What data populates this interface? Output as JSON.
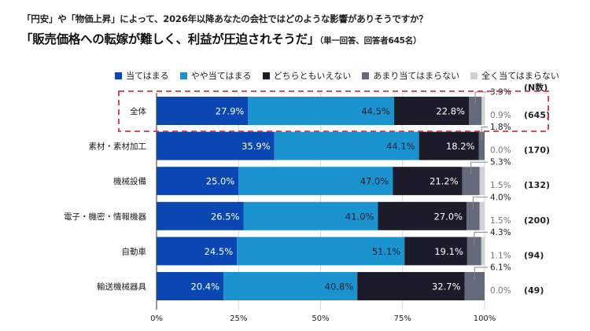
{
  "question": "「円安」や「物価上昇」によって、2026年以降あなたの会社ではどのような影響がありそうですか？",
  "title": "「販売価格への転嫁が難しく、利益が圧迫されそうだ」",
  "title_note": "（単一回答、回答者645名）",
  "n_header": "(N数)",
  "chart_data": {
    "type": "bar",
    "orientation": "horizontal-stacked-100",
    "title": "「販売価格への転嫁が難しく、利益が圧迫されそうだ」",
    "subtitle": "（単一回答、回答者645名）",
    "xlabel": "",
    "ylabel": "",
    "xlim": [
      0,
      100
    ],
    "x_ticks": [
      "0%",
      "25%",
      "50%",
      "75%",
      "100%"
    ],
    "grid": true,
    "legend_position": "top",
    "highlighted_category": "全体",
    "categories": [
      "全体",
      "素材・素材加工",
      "機械設備",
      "電子・機密・情報機器",
      "自動車",
      "輸送機械器具"
    ],
    "n": [
      "(645)",
      "(170)",
      "(132)",
      "(200)",
      "(94)",
      "(49)"
    ],
    "series": [
      {
        "name": "当てはまる",
        "color": "#0a47b3",
        "label_color": "#ffffff",
        "values": [
          27.9,
          35.9,
          25.0,
          26.5,
          24.5,
          20.4
        ]
      },
      {
        "name": "やや当てはまる",
        "color": "#1a93cf",
        "label_color": "#1b1f2e",
        "values": [
          44.5,
          44.1,
          47.0,
          41.0,
          51.1,
          40.8
        ]
      },
      {
        "name": "どちらともいえない",
        "color": "#1b1b29",
        "label_color": "#ffffff",
        "values": [
          22.8,
          18.2,
          21.2,
          27.0,
          19.1,
          32.7
        ]
      },
      {
        "name": "あまり当てはまらない",
        "color": "#646a7c",
        "label_color": "#222222",
        "values": [
          3.9,
          1.8,
          5.3,
          4.0,
          4.3,
          6.1
        ]
      },
      {
        "name": "全く当てはまらない",
        "color": "#cfd1d6",
        "label_color": "#666666",
        "values": [
          0.9,
          0.0,
          1.5,
          1.5,
          1.1,
          0.0
        ]
      }
    ]
  }
}
